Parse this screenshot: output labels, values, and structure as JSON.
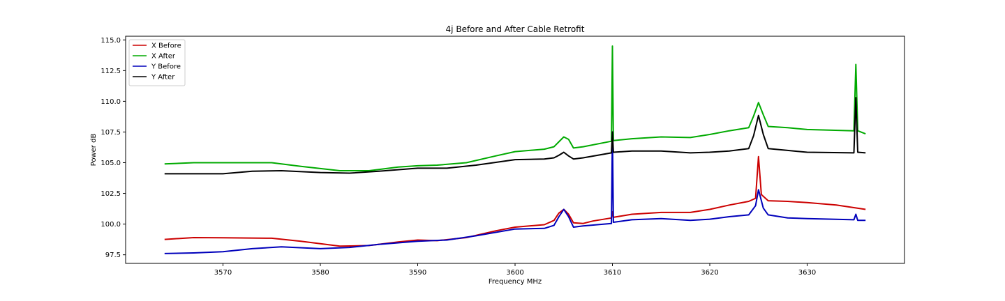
{
  "chart_data": {
    "type": "line",
    "title": "4j Before and After Cable Retrofit",
    "xlabel": "Frequency MHz",
    "ylabel": "Power dB",
    "xlim": [
      3560.0,
      3640.0
    ],
    "ylim": [
      96.8,
      115.3
    ],
    "x_ticks": [
      3570,
      3580,
      3590,
      3600,
      3610,
      3620,
      3630
    ],
    "y_ticks": [
      97.5,
      100.0,
      102.5,
      105.0,
      107.5,
      110.0,
      112.5,
      115.0
    ],
    "x_tick_labels": [
      "3570",
      "3580",
      "3590",
      "3600",
      "3610",
      "3620",
      "3630"
    ],
    "y_tick_labels": [
      "97.5",
      "100.0",
      "102.5",
      "105.0",
      "107.5",
      "110.0",
      "112.5",
      "115.0"
    ],
    "grid": false,
    "legend_position": "upper-left",
    "series": [
      {
        "name": "X Before",
        "color": "#cc0000",
        "x": [
          3564,
          3567,
          3570,
          3575,
          3578,
          3582,
          3585,
          3588,
          3590,
          3592,
          3595,
          3598,
          3600,
          3603,
          3604,
          3604.5,
          3605,
          3605.5,
          3606,
          3607,
          3608,
          3609.9,
          3610,
          3610.1,
          3612,
          3615,
          3618,
          3620,
          3622,
          3624,
          3624.7,
          3625,
          3625.3,
          3626,
          3628,
          3630,
          3633,
          3636
        ],
        "y": [
          98.75,
          98.9,
          98.88,
          98.85,
          98.6,
          98.2,
          98.25,
          98.55,
          98.7,
          98.65,
          98.9,
          99.45,
          99.75,
          99.95,
          100.3,
          100.9,
          101.2,
          100.8,
          100.1,
          100.05,
          100.25,
          100.5,
          101.0,
          100.55,
          100.8,
          100.95,
          100.95,
          101.2,
          101.55,
          101.85,
          102.1,
          105.5,
          102.4,
          101.9,
          101.85,
          101.75,
          101.55,
          101.2
        ]
      },
      {
        "name": "X After",
        "color": "#00aa00",
        "x": [
          3564,
          3567,
          3570,
          3575,
          3578,
          3582,
          3585,
          3588,
          3590,
          3592,
          3595,
          3598,
          3600,
          3603,
          3604,
          3604.5,
          3605,
          3605.5,
          3606,
          3607,
          3609.9,
          3610,
          3610.1,
          3612,
          3615,
          3618,
          3620,
          3622,
          3624,
          3624.5,
          3625,
          3625.5,
          3626,
          3628,
          3630,
          3634.8,
          3635,
          3635.2,
          3636
        ],
        "y": [
          104.9,
          105.0,
          105.0,
          105.0,
          104.7,
          104.35,
          104.35,
          104.65,
          104.75,
          104.8,
          105.0,
          105.55,
          105.9,
          106.1,
          106.3,
          106.7,
          107.1,
          106.9,
          106.2,
          106.3,
          106.75,
          114.5,
          106.8,
          106.95,
          107.1,
          107.05,
          107.3,
          107.6,
          107.85,
          108.8,
          109.9,
          108.9,
          107.95,
          107.85,
          107.7,
          107.6,
          113.0,
          107.6,
          107.35
        ]
      },
      {
        "name": "Y Before",
        "color": "#0000bb",
        "x": [
          3564,
          3567,
          3570,
          3573,
          3576,
          3580,
          3583,
          3586,
          3590,
          3593,
          3596,
          3600,
          3603,
          3604,
          3604.5,
          3605,
          3605.5,
          3606,
          3607,
          3609.9,
          3610,
          3610.1,
          3612,
          3615,
          3618,
          3620,
          3622,
          3624,
          3624.7,
          3625,
          3625.5,
          3626,
          3628,
          3630,
          3634.8,
          3635,
          3635.2,
          3636
        ],
        "y": [
          97.6,
          97.65,
          97.75,
          98.0,
          98.15,
          98.0,
          98.1,
          98.35,
          98.6,
          98.7,
          99.05,
          99.6,
          99.65,
          99.9,
          100.6,
          101.2,
          100.6,
          99.75,
          99.85,
          100.05,
          107.5,
          100.15,
          100.35,
          100.45,
          100.3,
          100.4,
          100.6,
          100.75,
          101.5,
          102.8,
          101.3,
          100.75,
          100.5,
          100.45,
          100.35,
          100.8,
          100.3,
          100.3
        ]
      },
      {
        "name": "Y After",
        "color": "#000000",
        "x": [
          3564,
          3567,
          3570,
          3573,
          3576,
          3580,
          3583,
          3586,
          3590,
          3593,
          3596,
          3600,
          3603,
          3604,
          3604.5,
          3605,
          3605.5,
          3606,
          3607,
          3609.9,
          3610,
          3610.1,
          3612,
          3615,
          3618,
          3620,
          3622,
          3624,
          3624.5,
          3625,
          3625.5,
          3626,
          3628,
          3630,
          3634.8,
          3635,
          3635.2,
          3636
        ],
        "y": [
          104.1,
          104.1,
          104.1,
          104.3,
          104.35,
          104.2,
          104.15,
          104.3,
          104.55,
          104.55,
          104.8,
          105.25,
          105.3,
          105.4,
          105.6,
          105.85,
          105.55,
          105.3,
          105.4,
          105.8,
          107.5,
          105.85,
          105.95,
          105.95,
          105.8,
          105.85,
          105.95,
          106.15,
          107.2,
          108.85,
          107.3,
          106.15,
          106.0,
          105.85,
          105.8,
          110.3,
          105.85,
          105.8
        ]
      }
    ]
  }
}
